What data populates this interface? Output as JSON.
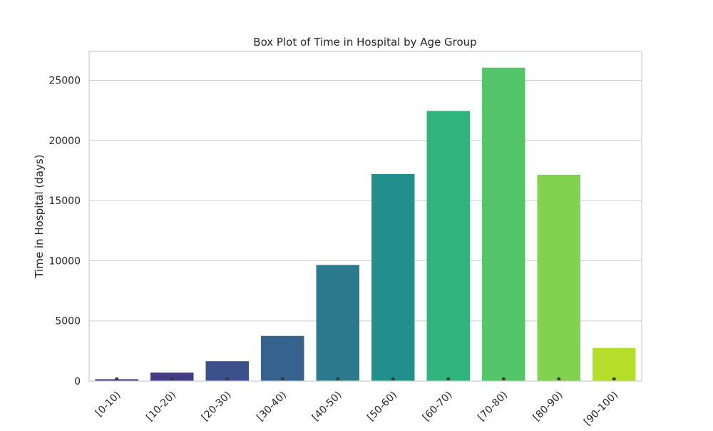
{
  "chart_data": {
    "type": "bar",
    "title": "Box Plot of Time in Hospital by Age Group",
    "xlabel": "",
    "ylabel": "Time in Hospital (days)",
    "categories": [
      "[0-10)",
      "[10-20)",
      "[20-30)",
      "[30-40)",
      "[40-50)",
      "[50-60)",
      "[60-70)",
      "[70-80)",
      "[80-90)",
      "[90-100)"
    ],
    "values": [
      150,
      700,
      1650,
      3750,
      9650,
      17200,
      22450,
      26050,
      17150,
      2750
    ],
    "ylim": [
      0,
      27400
    ],
    "yticks": [
      0,
      5000,
      10000,
      15000,
      20000,
      25000
    ],
    "grid": true,
    "colors": [
      "#472c7a",
      "#433d84",
      "#3c508b",
      "#35638d",
      "#2c7a8e",
      "#21908d",
      "#2fb47c",
      "#54c568",
      "#81d34d",
      "#b5de2b"
    ]
  }
}
